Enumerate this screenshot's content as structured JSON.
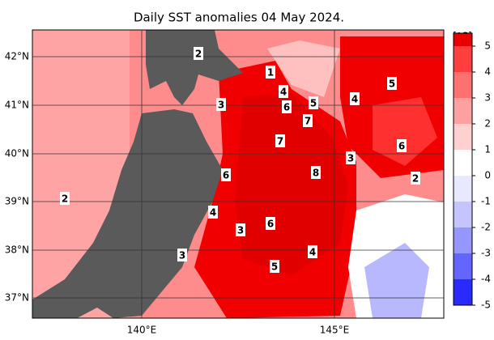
{
  "map": {
    "title": "Daily SST anomalies 04 May 2024.",
    "lat_labels": [
      "42°N",
      "41°N",
      "40°N",
      "39°N",
      "38°N",
      "37°N"
    ],
    "lon_labels": [
      "140°E",
      "145°E"
    ],
    "contour_labels": [
      2,
      1,
      4,
      6,
      5,
      4,
      5,
      3,
      7,
      7,
      3,
      6,
      8,
      6,
      2,
      2,
      4,
      6,
      3,
      3,
      4,
      5
    ],
    "colorbar": {
      "unit": "[ºC]",
      "ticks": [
        -5,
        -4,
        -3,
        -2,
        -1,
        0,
        1,
        2,
        3,
        4,
        5
      ],
      "colors": [
        "#2a2aff",
        "#6464ff",
        "#9696ff",
        "#c4c4ff",
        "#e8e8ff",
        "#ffffff",
        "#ffd0d0",
        "#ffa0a0",
        "#ff7070",
        "#ff3e3e",
        "#e80000"
      ]
    }
  }
}
